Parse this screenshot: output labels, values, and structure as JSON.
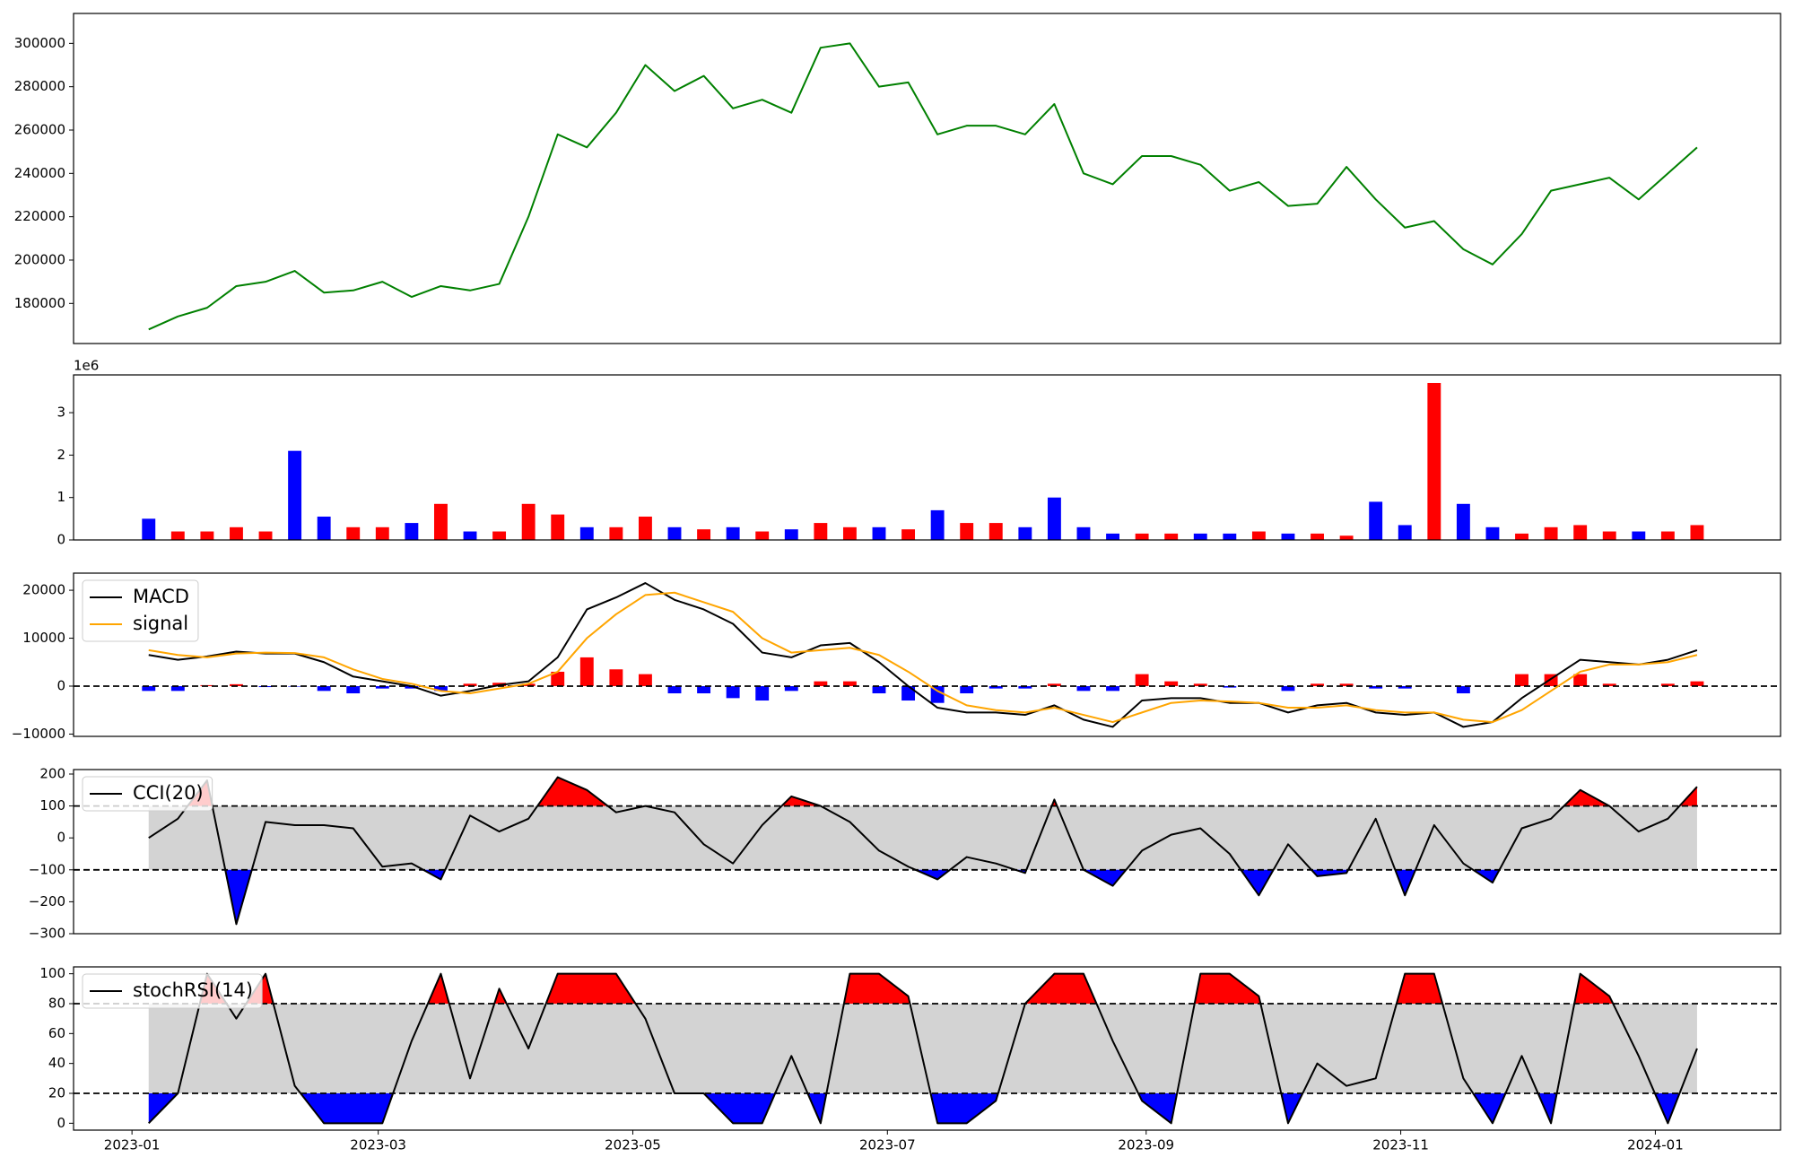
{
  "chart_data": [
    {
      "type": "line",
      "x": [
        "2023-01-05",
        "2023-01-12",
        "2023-01-19",
        "2023-01-26",
        "2023-02-02",
        "2023-02-09",
        "2023-02-16",
        "2023-02-23",
        "2023-03-02",
        "2023-03-09",
        "2023-03-16",
        "2023-03-23",
        "2023-03-30",
        "2023-04-06",
        "2023-04-13",
        "2023-04-20",
        "2023-04-27",
        "2023-05-04",
        "2023-05-11",
        "2023-05-18",
        "2023-05-25",
        "2023-06-01",
        "2023-06-08",
        "2023-06-15",
        "2023-06-22",
        "2023-06-29",
        "2023-07-06",
        "2023-07-13",
        "2023-07-20",
        "2023-07-27",
        "2023-08-03",
        "2023-08-10",
        "2023-08-17",
        "2023-08-24",
        "2023-08-31",
        "2023-09-07",
        "2023-09-14",
        "2023-09-21",
        "2023-09-28",
        "2023-10-05",
        "2023-10-12",
        "2023-10-19",
        "2023-10-26",
        "2023-11-02",
        "2023-11-09",
        "2023-11-16",
        "2023-11-23",
        "2023-11-30",
        "2023-12-07",
        "2023-12-14",
        "2023-12-21",
        "2023-12-28",
        "2024-01-04",
        "2024-01-11"
      ],
      "series": [
        {
          "color": "green",
          "values": [
            168000,
            174000,
            178000,
            188000,
            190000,
            195000,
            185000,
            186000,
            190000,
            183000,
            188000,
            186000,
            189000,
            220000,
            258000,
            252000,
            268000,
            290000,
            278000,
            285000,
            270000,
            274000,
            268000,
            298000,
            300000,
            280000,
            282000,
            258000,
            262000,
            262000,
            258000,
            272000,
            240000,
            235000,
            248000,
            248000,
            244000,
            232000,
            236000,
            225000,
            226000,
            243000,
            228000,
            215000,
            218000,
            205000,
            198000,
            212000,
            232000,
            235000,
            238000,
            228000,
            240000,
            252000
          ]
        }
      ],
      "xlim": [
        "2022-12-18",
        "2024-01-31"
      ],
      "ylim": [
        161500,
        313800
      ],
      "yticks": [
        180000,
        200000,
        220000,
        240000,
        260000,
        280000,
        300000
      ]
    },
    {
      "type": "bar",
      "x": [
        "2023-01-05",
        "2023-01-12",
        "2023-01-19",
        "2023-01-26",
        "2023-02-02",
        "2023-02-09",
        "2023-02-16",
        "2023-02-23",
        "2023-03-02",
        "2023-03-09",
        "2023-03-16",
        "2023-03-23",
        "2023-03-30",
        "2023-04-06",
        "2023-04-13",
        "2023-04-20",
        "2023-04-27",
        "2023-05-04",
        "2023-05-11",
        "2023-05-18",
        "2023-05-25",
        "2023-06-01",
        "2023-06-08",
        "2023-06-15",
        "2023-06-22",
        "2023-06-29",
        "2023-07-06",
        "2023-07-13",
        "2023-07-20",
        "2023-07-27",
        "2023-08-03",
        "2023-08-10",
        "2023-08-17",
        "2023-08-24",
        "2023-08-31",
        "2023-09-07",
        "2023-09-14",
        "2023-09-21",
        "2023-09-28",
        "2023-10-05",
        "2023-10-12",
        "2023-10-19",
        "2023-10-26",
        "2023-11-02",
        "2023-11-09",
        "2023-11-16",
        "2023-11-23",
        "2023-11-30",
        "2023-12-07",
        "2023-12-14",
        "2023-12-21",
        "2023-12-28",
        "2024-01-04",
        "2024-01-11"
      ],
      "values": [
        0.5,
        0.2,
        0.2,
        0.3,
        0.2,
        2.1,
        0.55,
        0.3,
        0.3,
        0.4,
        0.85,
        0.2,
        0.2,
        0.85,
        0.6,
        0.3,
        0.3,
        0.55,
        0.3,
        0.25,
        0.3,
        0.2,
        0.25,
        0.4,
        0.3,
        0.3,
        0.25,
        0.7,
        0.4,
        0.4,
        0.3,
        1.0,
        0.3,
        0.15,
        0.15,
        0.15,
        0.15,
        0.15,
        0.2,
        0.15,
        0.15,
        0.1,
        0.9,
        0.35,
        3.7,
        0.85,
        0.3,
        0.15,
        0.3,
        0.35,
        0.2,
        0.2,
        0.2,
        0.35
      ],
      "colors": [
        "blue",
        "red",
        "red",
        "red",
        "red",
        "blue",
        "blue",
        "red",
        "red",
        "blue",
        "red",
        "blue",
        "red",
        "red",
        "red",
        "blue",
        "red",
        "red",
        "blue",
        "red",
        "blue",
        "red",
        "blue",
        "red",
        "red",
        "blue",
        "red",
        "blue",
        "red",
        "red",
        "blue",
        "blue",
        "blue",
        "blue",
        "red",
        "red",
        "blue",
        "blue",
        "red",
        "blue",
        "red",
        "red",
        "blue",
        "blue",
        "red",
        "blue",
        "blue",
        "red",
        "red",
        "red",
        "red",
        "blue",
        "red",
        "red"
      ],
      "offset_label": "1e6",
      "xlim": [
        "2022-12-18",
        "2024-01-31"
      ],
      "ylim": [
        0,
        3.89
      ],
      "yticks": [
        0,
        1,
        2,
        3
      ]
    },
    {
      "type": "line",
      "x": [
        "2023-01-05",
        "2023-01-12",
        "2023-01-19",
        "2023-01-26",
        "2023-02-02",
        "2023-02-09",
        "2023-02-16",
        "2023-02-23",
        "2023-03-02",
        "2023-03-09",
        "2023-03-16",
        "2023-03-23",
        "2023-03-30",
        "2023-04-06",
        "2023-04-13",
        "2023-04-20",
        "2023-04-27",
        "2023-05-04",
        "2023-05-11",
        "2023-05-18",
        "2023-05-25",
        "2023-06-01",
        "2023-06-08",
        "2023-06-15",
        "2023-06-22",
        "2023-06-29",
        "2023-07-06",
        "2023-07-13",
        "2023-07-20",
        "2023-07-27",
        "2023-08-03",
        "2023-08-10",
        "2023-08-17",
        "2023-08-24",
        "2023-08-31",
        "2023-09-07",
        "2023-09-14",
        "2023-09-21",
        "2023-09-28",
        "2023-10-05",
        "2023-10-12",
        "2023-10-19",
        "2023-10-26",
        "2023-11-02",
        "2023-11-09",
        "2023-11-16",
        "2023-11-23",
        "2023-11-30",
        "2023-12-07",
        "2023-12-14",
        "2023-12-21",
        "2023-12-28",
        "2024-01-04",
        "2024-01-11"
      ],
      "series": [
        {
          "name": "MACD",
          "color": "black",
          "values": [
            6500,
            5500,
            6200,
            7200,
            6800,
            6800,
            5000,
            2000,
            1000,
            0,
            -2000,
            -1000,
            200,
            1000,
            6000,
            16000,
            18500,
            21500,
            18000,
            16000,
            13000,
            7000,
            6000,
            8500,
            9000,
            5000,
            0,
            -4500,
            -5500,
            -5500,
            -6000,
            -4000,
            -7000,
            -8500,
            -3000,
            -2500,
            -2500,
            -3500,
            -3500,
            -5500,
            -4000,
            -3500,
            -5500,
            -6000,
            -5500,
            -8500,
            -7500,
            -2500,
            1500,
            5500,
            5000,
            4500,
            5500,
            7500
          ]
        },
        {
          "name": "signal",
          "color": "orange",
          "values": [
            7500,
            6500,
            6000,
            6800,
            7000,
            6900,
            6000,
            3500,
            1500,
            500,
            -1000,
            -1500,
            -500,
            500,
            3000,
            10000,
            15000,
            19000,
            19500,
            17500,
            15500,
            10000,
            7000,
            7500,
            8000,
            6500,
            3000,
            -1000,
            -4000,
            -5000,
            -5500,
            -4500,
            -6000,
            -7500,
            -5500,
            -3500,
            -3000,
            -3200,
            -3500,
            -4500,
            -4500,
            -4000,
            -5000,
            -5500,
            -5500,
            -7000,
            -7500,
            -5000,
            -1000,
            3000,
            4500,
            4500,
            5000,
            6500
          ]
        },
        {
          "type": "bar",
          "pos_color": "red",
          "neg_color": "blue",
          "values": [
            -1000,
            -1000,
            200,
            400,
            -200,
            -100,
            -1000,
            -1500,
            -500,
            -500,
            -1000,
            500,
            700,
            500,
            3000,
            6000,
            3500,
            2500,
            -1500,
            -1500,
            -2500,
            -3000,
            -1000,
            1000,
            1000,
            -1500,
            -3000,
            -3500,
            -1500,
            -500,
            -500,
            500,
            -1000,
            -1000,
            2500,
            1000,
            500,
            -300,
            0,
            -1000,
            500,
            500,
            -500,
            -500,
            0,
            -1500,
            0,
            2500,
            2500,
            2500,
            500,
            0,
            500,
            1000
          ]
        }
      ],
      "hlines": [
        0
      ],
      "legend": "upper left",
      "xlim": [
        "2022-12-18",
        "2024-01-31"
      ],
      "ylim": [
        -10480,
        23570
      ],
      "yticks": [
        {
          "value": -10000,
          "label": "−10000"
        },
        0,
        10000,
        20000
      ]
    },
    {
      "type": "line",
      "x": [
        "2023-01-05",
        "2023-01-12",
        "2023-01-19",
        "2023-01-26",
        "2023-02-02",
        "2023-02-09",
        "2023-02-16",
        "2023-02-23",
        "2023-03-02",
        "2023-03-09",
        "2023-03-16",
        "2023-03-23",
        "2023-03-30",
        "2023-04-06",
        "2023-04-13",
        "2023-04-20",
        "2023-04-27",
        "2023-05-04",
        "2023-05-11",
        "2023-05-18",
        "2023-05-25",
        "2023-06-01",
        "2023-06-08",
        "2023-06-15",
        "2023-06-22",
        "2023-06-29",
        "2023-07-06",
        "2023-07-13",
        "2023-07-20",
        "2023-07-27",
        "2023-08-03",
        "2023-08-10",
        "2023-08-17",
        "2023-08-24",
        "2023-08-31",
        "2023-09-07",
        "2023-09-14",
        "2023-09-21",
        "2023-09-28",
        "2023-10-05",
        "2023-10-12",
        "2023-10-19",
        "2023-10-26",
        "2023-11-02",
        "2023-11-09",
        "2023-11-16",
        "2023-11-23",
        "2023-11-30",
        "2023-12-07",
        "2023-12-14",
        "2023-12-21",
        "2023-12-28",
        "2024-01-04",
        "2024-01-11"
      ],
      "series": [
        {
          "name": "CCI(20)",
          "color": "black",
          "values": [
            0,
            60,
            180,
            -270,
            50,
            40,
            40,
            30,
            -90,
            -80,
            -130,
            70,
            20,
            60,
            190,
            150,
            80,
            100,
            80,
            -20,
            -80,
            40,
            130,
            100,
            50,
            -40,
            -90,
            -130,
            -60,
            -80,
            -110,
            120,
            -100,
            -150,
            -40,
            10,
            30,
            -50,
            -180,
            -20,
            -120,
            -110,
            60,
            -180,
            40,
            -80,
            -140,
            30,
            60,
            150,
            100,
            20,
            60,
            160
          ]
        }
      ],
      "bands": {
        "lower": -100,
        "upper": 100,
        "band_color": "lightgrey",
        "above_color": "red",
        "below_color": "blue"
      },
      "legend": "upper left",
      "xlim": [
        "2022-12-18",
        "2024-01-31"
      ],
      "ylim": [
        -300,
        214
      ],
      "yticks": [
        {
          "value": -300,
          "label": "−300"
        },
        {
          "value": -200,
          "label": "−200"
        },
        {
          "value": -100,
          "label": "−100"
        },
        0,
        100,
        200
      ]
    },
    {
      "type": "line",
      "x": [
        "2023-01-05",
        "2023-01-12",
        "2023-01-19",
        "2023-01-26",
        "2023-02-02",
        "2023-02-09",
        "2023-02-16",
        "2023-02-23",
        "2023-03-02",
        "2023-03-09",
        "2023-03-16",
        "2023-03-23",
        "2023-03-30",
        "2023-04-06",
        "2023-04-13",
        "2023-04-20",
        "2023-04-27",
        "2023-05-04",
        "2023-05-11",
        "2023-05-18",
        "2023-05-25",
        "2023-06-01",
        "2023-06-08",
        "2023-06-15",
        "2023-06-22",
        "2023-06-29",
        "2023-07-06",
        "2023-07-13",
        "2023-07-20",
        "2023-07-27",
        "2023-08-03",
        "2023-08-10",
        "2023-08-17",
        "2023-08-24",
        "2023-08-31",
        "2023-09-07",
        "2023-09-14",
        "2023-09-21",
        "2023-09-28",
        "2023-10-05",
        "2023-10-12",
        "2023-10-19",
        "2023-10-26",
        "2023-11-02",
        "2023-11-09",
        "2023-11-16",
        "2023-11-23",
        "2023-11-30",
        "2023-12-07",
        "2023-12-14",
        "2023-12-21",
        "2023-12-28",
        "2024-01-04",
        "2024-01-11"
      ],
      "series": [
        {
          "name": "stochRSI(14)",
          "color": "black",
          "values": [
            0,
            20,
            100,
            70,
            100,
            25,
            0,
            0,
            0,
            55,
            100,
            30,
            90,
            50,
            100,
            100,
            100,
            70,
            20,
            20,
            0,
            0,
            45,
            0,
            100,
            100,
            85,
            0,
            0,
            15,
            80,
            100,
            100,
            55,
            15,
            0,
            100,
            100,
            85,
            0,
            40,
            25,
            30,
            100,
            100,
            30,
            0,
            45,
            0,
            100,
            85,
            45,
            0,
            50
          ]
        }
      ],
      "bands": {
        "lower": 20,
        "upper": 80,
        "band_color": "lightgrey",
        "above_color": "red",
        "below_color": "blue"
      },
      "legend": "upper left",
      "xlim": [
        "2022-12-18",
        "2024-01-31"
      ],
      "ylim": [
        -4.6,
        104.6
      ],
      "yticks": [
        0,
        20,
        40,
        60,
        80,
        100
      ],
      "xticks": [
        {
          "value": "2023-01-01",
          "label": "2023-01"
        },
        {
          "value": "2023-03-01",
          "label": "2023-03"
        },
        {
          "value": "2023-05-01",
          "label": "2023-05"
        },
        {
          "value": "2023-07-01",
          "label": "2023-07"
        },
        {
          "value": "2023-09-01",
          "label": "2023-09"
        },
        {
          "value": "2023-11-01",
          "label": "2023-11"
        },
        {
          "value": "2024-01-01",
          "label": "2024-01"
        }
      ]
    }
  ]
}
